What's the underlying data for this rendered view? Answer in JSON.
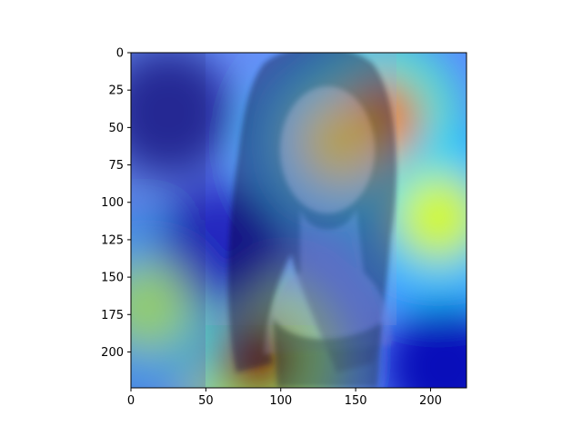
{
  "chart_data": {
    "type": "heatmap",
    "title": "",
    "xlabel": "",
    "ylabel": "",
    "xlim": [
      0,
      224
    ],
    "ylim": [
      224,
      0
    ],
    "x_ticks": [
      0,
      50,
      100,
      150,
      200
    ],
    "y_ticks": [
      0,
      25,
      50,
      75,
      100,
      125,
      150,
      175,
      200
    ],
    "colormap": "jet",
    "overlay": "attention heatmap over a portrait photograph of a long-haired woman smiling",
    "hotspots": [
      {
        "x": 85,
        "y": 205,
        "value": 1.0
      },
      {
        "x": 165,
        "y": 45,
        "value": 0.8
      },
      {
        "x": 140,
        "y": 60,
        "value": 0.65
      },
      {
        "x": 205,
        "y": 110,
        "value": 0.6
      },
      {
        "x": 10,
        "y": 170,
        "value": 0.55
      }
    ],
    "cold_regions": [
      {
        "x": 25,
        "y": 40,
        "value": 0.0
      },
      {
        "x": 60,
        "y": 130,
        "value": 0.05
      },
      {
        "x": 210,
        "y": 210,
        "value": 0.05
      }
    ]
  }
}
